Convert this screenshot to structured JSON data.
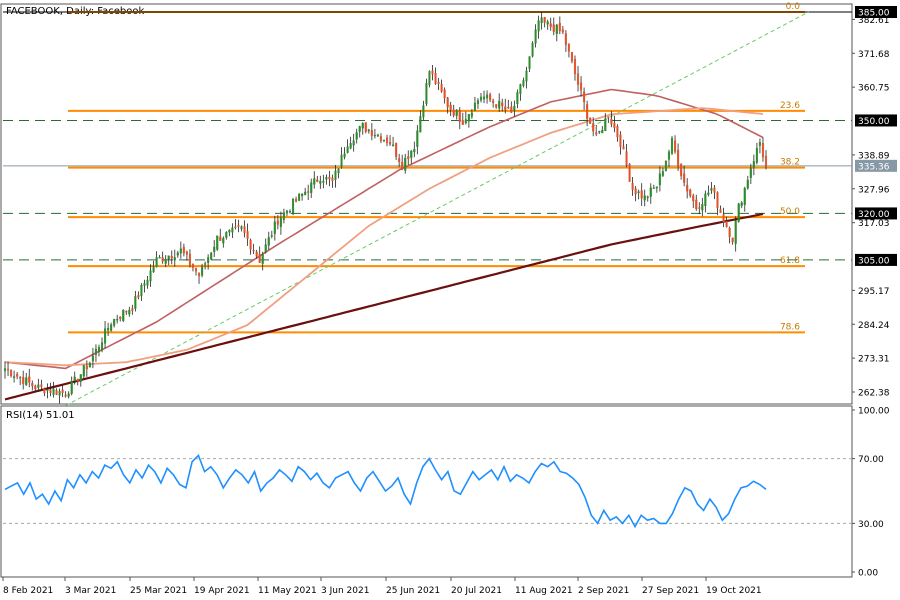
{
  "header": {
    "title": "FACEBOOK, Daily:  Facebook",
    "rsi_label": "RSI(14) 51.01"
  },
  "colors": {
    "candle_up": "#2e8b2e",
    "candle_down": "#e0522a",
    "fib_line": "#ff8c00",
    "fib_text": "#c87a00",
    "ma_fast": "#c06060",
    "ma_mid": "#f0a080",
    "ma_slow": "#6b0f0f",
    "trendline": "#66cc66",
    "rsi_line": "#1e90ff",
    "price_box_dark": "#000000",
    "price_box_current": "#8899a6"
  },
  "chart_data": [
    {
      "type": "candlestick",
      "title": "FACEBOOK, Daily:  Facebook",
      "x_ticks": [
        "8 Feb 2021",
        "3 Mar 2021",
        "25 Mar 2021",
        "19 Apr 2021",
        "11 May 2021",
        "3 Jun 2021",
        "25 Jun 2021",
        "20 Jul 2021",
        "11 Aug 2021",
        "2 Sep 2021",
        "27 Sep 2021",
        "19 Oct 2021"
      ],
      "y_ticks": [
        "382.61",
        "371.68",
        "360.75",
        "338.89",
        "327.96",
        "317.03",
        "295.17",
        "284.24",
        "273.31",
        "262.38"
      ],
      "ylim": [
        252.6,
        386.5
      ],
      "current_price": "335.36",
      "key_levels": [
        "385.00",
        "350.00",
        "320.00",
        "305.00"
      ],
      "fibonacci": [
        {
          "label": "0.0",
          "price": 385.0
        },
        {
          "label": "23.6",
          "price": 353.1
        },
        {
          "label": "38.2",
          "price": 334.8
        },
        {
          "label": "50.0",
          "price": 318.8
        },
        {
          "label": "61.8",
          "price": 303.0
        },
        {
          "label": "78.6",
          "price": 281.6
        }
      ],
      "close_waypoints": [
        [
          0,
          270
        ],
        [
          10,
          264
        ],
        [
          20,
          262
        ],
        [
          28,
          272
        ],
        [
          35,
          285
        ],
        [
          42,
          290
        ],
        [
          50,
          305
        ],
        [
          58,
          308
        ],
        [
          64,
          300
        ],
        [
          70,
          312
        ],
        [
          78,
          315
        ],
        [
          84,
          305
        ],
        [
          90,
          318
        ],
        [
          97,
          325
        ],
        [
          104,
          332
        ],
        [
          108,
          330
        ],
        [
          113,
          343
        ],
        [
          118,
          348
        ],
        [
          122,
          346
        ],
        [
          127,
          343
        ],
        [
          131,
          336
        ],
        [
          135,
          342
        ],
        [
          140,
          366
        ],
        [
          146,
          355
        ],
        [
          151,
          350
        ],
        [
          157,
          358
        ],
        [
          163,
          355
        ],
        [
          167,
          352
        ],
        [
          172,
          366
        ],
        [
          176,
          382
        ],
        [
          181,
          380
        ],
        [
          184,
          378
        ],
        [
          188,
          365
        ],
        [
          192,
          352
        ],
        [
          195,
          344
        ],
        [
          199,
          352
        ],
        [
          203,
          343
        ],
        [
          207,
          328
        ],
        [
          211,
          325
        ],
        [
          215,
          329
        ],
        [
          220,
          343
        ],
        [
          224,
          330
        ],
        [
          228,
          322
        ],
        [
          233,
          328
        ],
        [
          237,
          318
        ],
        [
          240,
          312
        ],
        [
          242,
          322
        ],
        [
          244,
          328
        ],
        [
          246,
          335
        ],
        [
          249,
          343
        ],
        [
          251,
          335
        ]
      ],
      "moving_averages": [
        {
          "name": "fast",
          "points": [
            [
              0,
              272
            ],
            [
              20,
              270
            ],
            [
              50,
              285
            ],
            [
              90,
              310
            ],
            [
              130,
              334
            ],
            [
              160,
              348
            ],
            [
              180,
              356
            ],
            [
              200,
              360
            ],
            [
              215,
              358
            ],
            [
              235,
              352
            ],
            [
              251,
              344
            ]
          ]
        },
        {
          "name": "mid",
          "points": [
            [
              0,
              272
            ],
            [
              20,
              271
            ],
            [
              40,
              272
            ],
            [
              60,
              276
            ],
            [
              80,
              284
            ],
            [
              100,
              300
            ],
            [
              120,
              316
            ],
            [
              140,
              328
            ],
            [
              160,
              338
            ],
            [
              180,
              346
            ],
            [
              200,
              352
            ],
            [
              230,
              354
            ],
            [
              251,
              352
            ]
          ]
        },
        {
          "name": "slow",
          "points": [
            [
              0,
              260
            ],
            [
              40,
              270
            ],
            [
              80,
              280
            ],
            [
              120,
              290
            ],
            [
              160,
              300
            ],
            [
              200,
              310
            ],
            [
              230,
              316
            ],
            [
              251,
              320
            ]
          ]
        }
      ],
      "trendline": {
        "points": [
          [
            20,
            258
          ],
          [
            265,
            385
          ]
        ]
      }
    },
    {
      "type": "line",
      "title": "RSI(14) 51.01",
      "ylim": [
        0,
        100
      ],
      "y_ticks": [
        "100.00",
        "70.00",
        "30.00",
        "0.00"
      ],
      "levels": [
        70,
        30
      ],
      "values": [
        51,
        53,
        55,
        48,
        55,
        45,
        48,
        42,
        50,
        44,
        57,
        52,
        60,
        55,
        62,
        58,
        66,
        64,
        68,
        60,
        55,
        63,
        58,
        66,
        62,
        55,
        64,
        60,
        54,
        52,
        68,
        72,
        62,
        65,
        60,
        52,
        58,
        63,
        60,
        55,
        62,
        50,
        55,
        58,
        63,
        60,
        56,
        65,
        62,
        57,
        61,
        55,
        52,
        58,
        60,
        62,
        55,
        50,
        58,
        62,
        56,
        50,
        53,
        58,
        48,
        42,
        55,
        65,
        70,
        63,
        57,
        62,
        50,
        48,
        55,
        62,
        57,
        60,
        63,
        57,
        65,
        56,
        60,
        58,
        55,
        62,
        67,
        65,
        68,
        62,
        61,
        58,
        54,
        46,
        35,
        30,
        38,
        32,
        34,
        30,
        35,
        28,
        35,
        32,
        33,
        30,
        30,
        36,
        45,
        52,
        50,
        42,
        38,
        45,
        40,
        32,
        36,
        45,
        52,
        53,
        56,
        54,
        51
      ]
    }
  ]
}
